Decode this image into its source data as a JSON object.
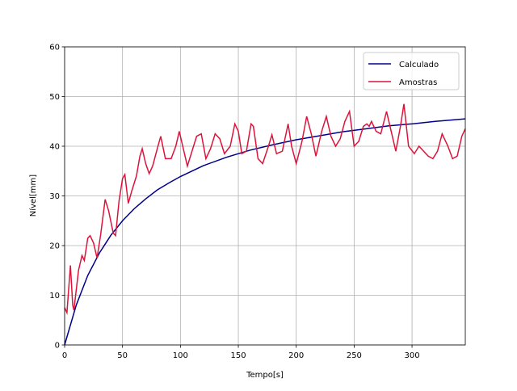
{
  "chart_data": {
    "type": "line",
    "xlabel": "Tempo[s]",
    "ylabel": "Nível[mm]",
    "xlim": [
      0,
      346
    ],
    "ylim": [
      0,
      60
    ],
    "xticks": [
      0,
      50,
      100,
      150,
      200,
      250,
      300
    ],
    "yticks": [
      0,
      10,
      20,
      30,
      40,
      50,
      60
    ],
    "grid": true,
    "legend": "upper right",
    "series": [
      {
        "name": "Calculado",
        "color": "#00008b",
        "x": [
          0,
          10,
          20,
          30,
          40,
          50,
          60,
          70,
          80,
          90,
          100,
          120,
          140,
          160,
          180,
          200,
          220,
          240,
          260,
          280,
          300,
          320,
          346
        ],
        "values": [
          0,
          8.0,
          14.0,
          18.5,
          22.1,
          25.0,
          27.4,
          29.4,
          31.2,
          32.6,
          33.9,
          36.1,
          37.8,
          39.2,
          40.3,
          41.3,
          42.1,
          42.9,
          43.5,
          44.1,
          44.5,
          45.0,
          45.5
        ]
      },
      {
        "name": "Amostras",
        "color": "#dc143c",
        "x": [
          0,
          2,
          5,
          7,
          8,
          12,
          15,
          17,
          20,
          22,
          25,
          28,
          31,
          35,
          38,
          42,
          44,
          47,
          50,
          52,
          55,
          58,
          62,
          65,
          67,
          70,
          73,
          76,
          80,
          83,
          87,
          92,
          96,
          99,
          102,
          106,
          110,
          114,
          118,
          122,
          126,
          130,
          134,
          138,
          143,
          147,
          150,
          153,
          157,
          161,
          163,
          167,
          171,
          176,
          179,
          183,
          188,
          193,
          196,
          200,
          205,
          209,
          213,
          217,
          222,
          226,
          230,
          234,
          238,
          242,
          246,
          250,
          254,
          258,
          261,
          263,
          265,
          269,
          273,
          278,
          282,
          286,
          290,
          293,
          297,
          302,
          306,
          310,
          314,
          318,
          322,
          326,
          331,
          335,
          339,
          343,
          346
        ],
        "values": [
          7.5,
          6.5,
          16,
          8,
          7,
          15,
          18,
          17,
          21.5,
          22,
          20.5,
          17.5,
          22,
          29.3,
          27,
          22.5,
          22,
          29,
          33.5,
          34.3,
          28.5,
          31,
          34,
          38,
          39.5,
          36.5,
          34.5,
          36,
          39.5,
          42,
          37.5,
          37.5,
          40,
          43,
          40,
          36,
          39,
          42,
          42.5,
          37.5,
          39.5,
          42.5,
          41.5,
          38.5,
          40,
          44.5,
          43,
          38.5,
          39,
          44.5,
          44,
          37.5,
          36.5,
          40,
          42.3,
          38.5,
          39,
          44.5,
          40,
          36.5,
          41,
          46,
          42.5,
          38,
          43,
          46,
          42,
          40,
          41.5,
          45,
          47,
          40,
          41,
          44,
          44.5,
          44,
          45,
          43,
          42.5,
          47,
          43,
          39,
          44,
          48.5,
          40,
          38.5,
          40,
          39,
          38,
          37.5,
          39,
          42.5,
          40,
          37.5,
          38,
          42,
          43.5
        ]
      }
    ]
  }
}
